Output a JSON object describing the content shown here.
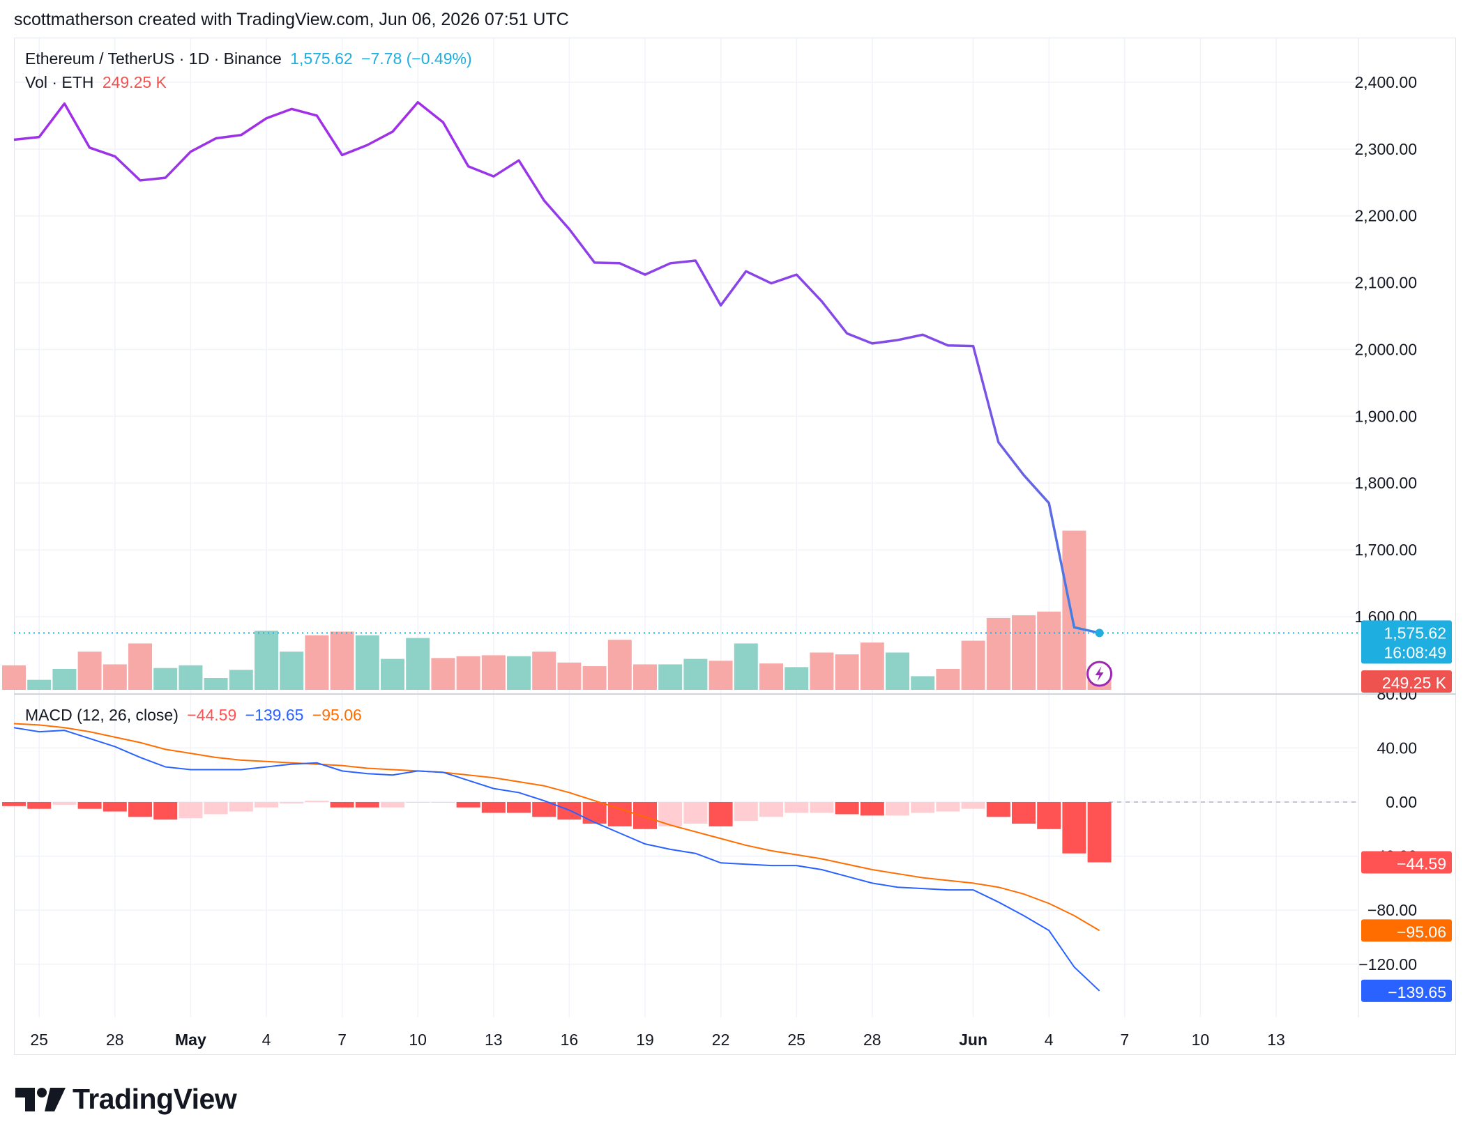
{
  "header": {
    "text": "scottmatherson created with TradingView.com, Jun 06, 2026 07:51 UTC"
  },
  "legend": {
    "symbol": "Ethereum / TetherUS · 1D · Binance",
    "last_price": "1,575.62",
    "change": "−7.78 (−0.49%)",
    "vol_label": "Vol · ETH",
    "vol_value": "249.25 K",
    "macd_label": "MACD (12, 26, close)",
    "macd_hist": "−44.59",
    "macd_line": "−139.65",
    "macd_signal": "−95.06"
  },
  "price_tags": {
    "last_price": "1,575.62",
    "countdown": "16:08:49",
    "volume": "249.25 K",
    "hist": "−44.59",
    "signal": "−95.06",
    "macd": "−139.65"
  },
  "branding": {
    "logo_text": "TradingView"
  },
  "colors": {
    "line_purple": "#a52ae8",
    "line_blue": "#2f8ee0",
    "vol_up": "#8ed1c6",
    "vol_down": "#f7a9a7",
    "vol_down_strong": "#f28e8c",
    "macd_line": "#2962ff",
    "signal_line": "#ff6d00",
    "hist_strong": "#ff5252",
    "hist_light": "#ffcdd2",
    "last_price_tag": "#1eaee0",
    "vol_tag": "#ef5350"
  },
  "chart_data": [
    {
      "type": "line",
      "name": "price",
      "x": [
        "Apr 24",
        "Apr 25",
        "Apr 26",
        "Apr 27",
        "Apr 28",
        "Apr 29",
        "Apr 30",
        "May 1",
        "May 2",
        "May 3",
        "May 4",
        "May 5",
        "May 6",
        "May 7",
        "May 8",
        "May 9",
        "May 10",
        "May 11",
        "May 12",
        "May 13",
        "May 14",
        "May 15",
        "May 16",
        "May 17",
        "May 18",
        "May 19",
        "May 20",
        "May 21",
        "May 22",
        "May 23",
        "May 24",
        "May 25",
        "May 26",
        "May 27",
        "May 28",
        "May 29",
        "May 30",
        "May 31",
        "Jun 1",
        "Jun 2",
        "Jun 3",
        "Jun 4",
        "Jun 5",
        "Jun 6"
      ],
      "values": [
        2314,
        2318,
        2368,
        2302,
        2289,
        2253,
        2257,
        2296,
        2316,
        2321,
        2346,
        2360,
        2350,
        2291,
        2306,
        2326,
        2370,
        2340,
        2274,
        2259,
        2283,
        2223,
        2180,
        2130,
        2129,
        2112,
        2129,
        2133,
        2066,
        2117,
        2099,
        2112,
        2072,
        2024,
        2009,
        2014,
        2022,
        2006,
        2005,
        1861,
        1812,
        1770,
        1584,
        1575.62
      ],
      "ylim": [
        1480,
        2400
      ],
      "y_ticks": [
        "2,400.00",
        "2,300.00",
        "2,200.00",
        "2,100.00",
        "2,000.00",
        "1,900.00",
        "1,800.00",
        "1,700.00",
        "1,600.00"
      ],
      "x_ticks": [
        "25",
        "28",
        "May",
        "4",
        "7",
        "10",
        "13",
        "16",
        "19",
        "22",
        "25",
        "28",
        "Jun",
        "4",
        "7",
        "10",
        "13"
      ],
      "last_value": 1575.62
    },
    {
      "type": "bar",
      "name": "volume",
      "x": [
        "Apr 24",
        "Apr 25",
        "Apr 26",
        "Apr 27",
        "Apr 28",
        "Apr 29",
        "Apr 30",
        "May 1",
        "May 2",
        "May 3",
        "May 4",
        "May 5",
        "May 6",
        "May 7",
        "May 8",
        "May 9",
        "May 10",
        "May 11",
        "May 12",
        "May 13",
        "May 14",
        "May 15",
        "May 16",
        "May 17",
        "May 18",
        "May 19",
        "May 20",
        "May 21",
        "May 22",
        "May 23",
        "May 24",
        "May 25",
        "May 26",
        "May 27",
        "May 28",
        "May 29",
        "May 30",
        "May 31",
        "Jun 1",
        "Jun 2",
        "Jun 3",
        "Jun 4",
        "Jun 5",
        "Jun 6"
      ],
      "values": [
        270,
        110,
        230,
        420,
        280,
        510,
        240,
        270,
        130,
        220,
        650,
        420,
        600,
        640,
        600,
        340,
        570,
        350,
        370,
        380,
        370,
        420,
        300,
        260,
        550,
        280,
        280,
        340,
        320,
        510,
        290,
        250,
        410,
        390,
        520,
        410,
        150,
        230,
        540,
        790,
        820,
        860,
        1750,
        249.25
      ],
      "direction": [
        "down",
        "up",
        "up",
        "down",
        "down",
        "down",
        "up",
        "up",
        "up",
        "up",
        "up",
        "up",
        "down",
        "down",
        "up",
        "up",
        "up",
        "down",
        "down",
        "down",
        "up",
        "down",
        "down",
        "down",
        "down",
        "down",
        "up",
        "up",
        "down",
        "up",
        "down",
        "up",
        "down",
        "down",
        "down",
        "up",
        "up",
        "down",
        "down",
        "down",
        "down",
        "down",
        "down",
        "down"
      ]
    },
    {
      "type": "line",
      "name": "macd",
      "title": "MACD (12, 26, close)",
      "x": [
        "Apr 24",
        "Apr 25",
        "Apr 26",
        "Apr 27",
        "Apr 28",
        "Apr 29",
        "Apr 30",
        "May 1",
        "May 2",
        "May 3",
        "May 4",
        "May 5",
        "May 6",
        "May 7",
        "May 8",
        "May 9",
        "May 10",
        "May 11",
        "May 12",
        "May 13",
        "May 14",
        "May 15",
        "May 16",
        "May 17",
        "May 18",
        "May 19",
        "May 20",
        "May 21",
        "May 22",
        "May 23",
        "May 24",
        "May 25",
        "May 26",
        "May 27",
        "May 28",
        "May 29",
        "May 30",
        "May 31",
        "Jun 1",
        "Jun 2",
        "Jun 3",
        "Jun 4",
        "Jun 5",
        "Jun 6"
      ],
      "series": [
        {
          "name": "MACD",
          "values": [
            55,
            52,
            53,
            47,
            41,
            33,
            26,
            24,
            24,
            24,
            26,
            28,
            29,
            23,
            21,
            20,
            23,
            22,
            16,
            10,
            7,
            1,
            -6,
            -15,
            -23,
            -31,
            -35,
            -38,
            -45,
            -46,
            -47,
            -47,
            -50,
            -55,
            -60,
            -63,
            -64,
            -65,
            -65,
            -74,
            -84,
            -95,
            -122,
            -139.65
          ]
        },
        {
          "name": "Signal",
          "values": [
            58,
            57,
            55,
            52,
            48,
            44,
            39,
            36,
            33,
            31,
            30,
            29,
            28,
            27,
            25,
            24,
            23,
            22,
            20,
            18,
            15,
            12,
            7,
            1,
            -5,
            -11,
            -17,
            -22,
            -27,
            -32,
            -36,
            -39,
            -42,
            -46,
            -50,
            -53,
            -56,
            -58,
            -60,
            -63,
            -68,
            -75,
            -84,
            -95.06
          ]
        },
        {
          "name": "Histogram",
          "values": [
            -3,
            -5,
            -2,
            -5,
            -7,
            -11,
            -13,
            -12,
            -9,
            -7,
            -4,
            -1,
            1,
            -4,
            -4,
            -4,
            0,
            0,
            -4,
            -8,
            -8,
            -11,
            -13,
            -16,
            -18,
            -20,
            -18,
            -16,
            -18,
            -14,
            -11,
            -8,
            -8,
            -9,
            -10,
            -10,
            -8,
            -7,
            -5,
            -11,
            -16,
            -20,
            -38,
            -44.59
          ]
        }
      ],
      "hist_strong": [
        true,
        true,
        false,
        true,
        true,
        true,
        true,
        false,
        false,
        false,
        false,
        false,
        false,
        true,
        true,
        false,
        false,
        false,
        true,
        true,
        true,
        true,
        true,
        true,
        true,
        true,
        false,
        false,
        true,
        false,
        false,
        false,
        false,
        true,
        true,
        false,
        false,
        false,
        false,
        true,
        true,
        true,
        true,
        true
      ],
      "ylim": [
        -150,
        80
      ],
      "y_ticks": [
        "80.00",
        "40.00",
        "0.00",
        "−40.00",
        "−80.00",
        "−120.00"
      ]
    }
  ]
}
